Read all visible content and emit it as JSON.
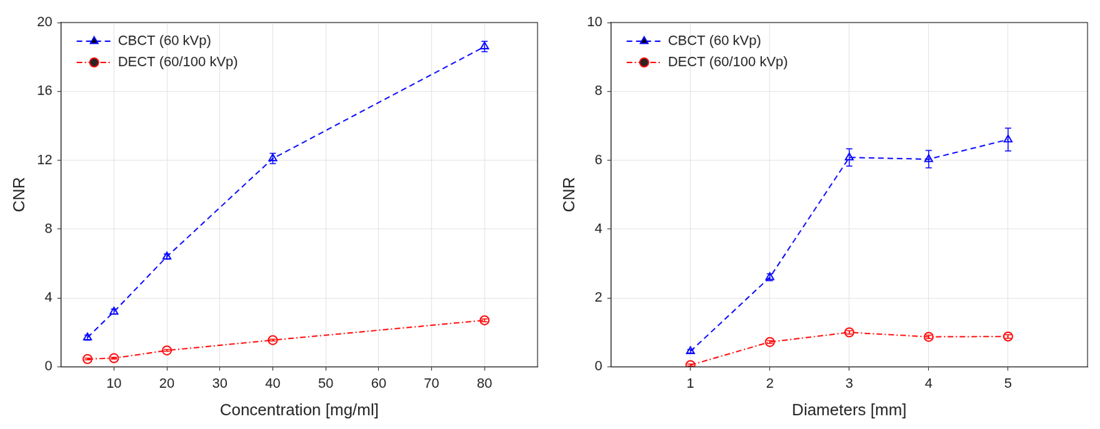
{
  "chart_data": [
    {
      "type": "line",
      "x_label": "Concentration [mg/ml]",
      "y_label": "CNR",
      "x": [
        5,
        10,
        20,
        40,
        80
      ],
      "series": [
        {
          "name": "CBCT (60 kVp)",
          "color": "#0000ff",
          "marker": "triangle",
          "line_style": "dashed",
          "values": [
            1.7,
            3.2,
            6.4,
            12.1,
            18.6
          ],
          "errors": [
            0.15,
            0.15,
            0.15,
            0.3,
            0.3
          ]
        },
        {
          "name": "DECT (60/100 kVp)",
          "color": "#ff0000",
          "marker": "circle",
          "line_style": "dashdot",
          "values": [
            0.45,
            0.5,
            0.95,
            1.55,
            2.7
          ],
          "errors": [
            0.05,
            0.05,
            0.05,
            0.05,
            0.08
          ]
        }
      ],
      "xlim": [
        0,
        90
      ],
      "xticks": [
        10,
        20,
        30,
        40,
        50,
        60,
        70,
        80
      ],
      "ylim": [
        0,
        20
      ],
      "yticks": [
        0,
        4,
        8,
        12,
        16,
        20
      ],
      "grid": true,
      "legend": "upper left"
    },
    {
      "type": "line",
      "x_label": "Diameters [mm]",
      "y_label": "CNR",
      "x": [
        1,
        2,
        3,
        4,
        5
      ],
      "series": [
        {
          "name": "CBCT (60 kVp)",
          "color": "#0000ff",
          "marker": "triangle",
          "line_style": "dashed",
          "values": [
            0.45,
            2.6,
            6.08,
            6.03,
            6.6
          ],
          "errors": [
            0.05,
            0.1,
            0.25,
            0.25,
            0.33
          ]
        },
        {
          "name": "DECT (60/100 kVp)",
          "color": "#ff0000",
          "marker": "circle",
          "line_style": "dashdot",
          "values": [
            0.05,
            0.72,
            1.0,
            0.87,
            0.88
          ],
          "errors": [
            0.03,
            0.04,
            0.05,
            0.05,
            0.05
          ]
        }
      ],
      "xlim": [
        0,
        6
      ],
      "xticks": [
        1,
        2,
        3,
        4,
        5
      ],
      "ylim": [
        0,
        10
      ],
      "yticks": [
        0,
        2,
        4,
        6,
        8,
        10
      ],
      "grid": true,
      "legend": "upper left"
    }
  ]
}
